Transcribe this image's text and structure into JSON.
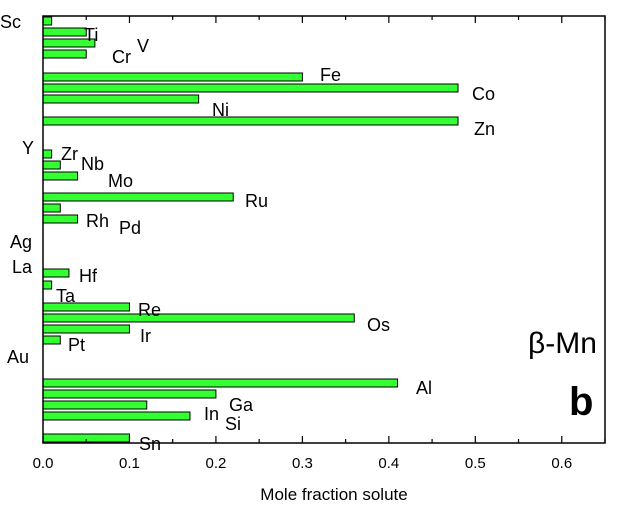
{
  "chart_data": {
    "type": "bar",
    "orientation": "horizontal",
    "xlabel": "Mole fraction solute",
    "xlim": [
      0,
      0.65
    ],
    "xticks": [
      "0.0",
      "0.1",
      "0.2",
      "0.3",
      "0.4",
      "0.5",
      "0.6"
    ],
    "xtick_values": [
      0,
      0.1,
      0.2,
      0.3,
      0.4,
      0.5,
      0.6
    ],
    "grid": false,
    "bar_color": "#33ff33",
    "annotations": [
      "β-Mn",
      "b"
    ],
    "categories": [
      "Sc",
      "Ti",
      "V",
      "Cr",
      "Fe",
      "Co",
      "Ni",
      "Zn",
      "Y",
      "Zr",
      "Nb",
      "Mo",
      "Ru",
      "Rh",
      "Pd",
      "Ag",
      "La",
      "Hf",
      "Ta",
      "Re",
      "Os",
      "Ir",
      "Pt",
      "Au",
      "Al",
      "Ga",
      "In",
      "Si",
      "Sn"
    ],
    "values": [
      0.01,
      0.05,
      0.06,
      0.05,
      0.3,
      0.48,
      0.18,
      0.48,
      0,
      0.01,
      0.02,
      0.04,
      0.22,
      0.02,
      0.04,
      0,
      0,
      0.03,
      0.01,
      0.1,
      0.36,
      0.1,
      0.02,
      0,
      0.41,
      0.2,
      0.12,
      0.17,
      0.1
    ]
  }
}
